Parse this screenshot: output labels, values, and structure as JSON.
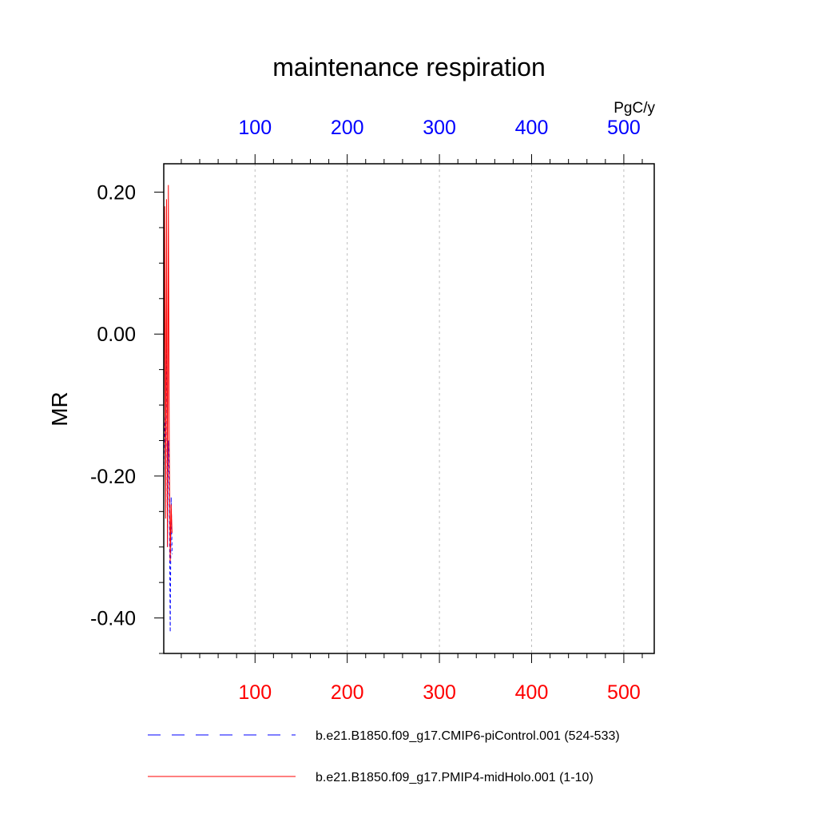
{
  "chart_data": {
    "type": "line",
    "title": "maintenance respiration",
    "ylabel": "MR",
    "top_axis_unit": "PgC/y",
    "xlim": [
      1,
      533
    ],
    "ylim": [
      -0.45,
      0.24
    ],
    "x_ticks": [
      100,
      200,
      300,
      400,
      500
    ],
    "x_tick_labels": [
      "100",
      "200",
      "300",
      "400",
      "500"
    ],
    "y_ticks": [
      0.2,
      0.0,
      -0.2,
      -0.4
    ],
    "y_tick_labels": [
      "0.20",
      "0.00",
      "-0.20",
      "-0.40"
    ],
    "bottom_tick_color": "#ff0000",
    "top_tick_color": "#0000ff",
    "grid": "vertical dashed",
    "legend_position": "bottom",
    "series": [
      {
        "name": "b.e21.B1850.f09_g17.CMIP6-piControl.001 (524-533)",
        "color": "#0000ff",
        "dash": "dashed",
        "x": [
          1,
          2,
          3,
          4,
          5,
          6,
          7,
          8,
          9,
          10
        ],
        "y": [
          -0.2,
          -0.13,
          -0.11,
          0.02,
          -0.3,
          -0.15,
          -0.22,
          -0.42,
          -0.23,
          -0.31
        ]
      },
      {
        "name": "b.e21.B1850.f09_g17.PMIP4-midHolo.001 (1-10)",
        "color": "#ff0000",
        "dash": "solid",
        "x": [
          1,
          2,
          3,
          4,
          5,
          6,
          7,
          8,
          9,
          10
        ],
        "y": [
          -0.18,
          0.18,
          -0.26,
          0.19,
          -0.3,
          0.21,
          -0.16,
          -0.32,
          -0.24,
          -0.28
        ]
      }
    ]
  }
}
